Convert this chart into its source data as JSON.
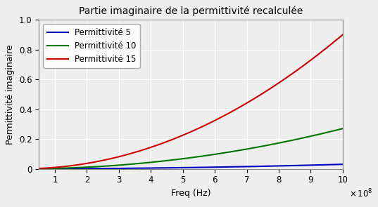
{
  "title": "Partie imaginaire de la permittivité recalculée",
  "xlabel": "Freq (Hz)",
  "ylabel": "Permittivité imaginaire",
  "xlim": [
    50000000.0,
    1000000000.0
  ],
  "ylim": [
    0,
    1.0
  ],
  "xticks": [
    100000000.0,
    200000000.0,
    300000000.0,
    400000000.0,
    500000000.0,
    600000000.0,
    700000000.0,
    800000000.0,
    900000000.0,
    1000000000.0
  ],
  "yticks": [
    0,
    0.2,
    0.4,
    0.6,
    0.8,
    1.0
  ],
  "series": [
    {
      "label": "Permittivité 5",
      "color": "#0000bb",
      "scale": 0.03,
      "exponent": 2.0
    },
    {
      "label": "Permittivité 10",
      "color": "#007700",
      "scale": 0.27,
      "exponent": 2.0
    },
    {
      "label": "Permittivité 15",
      "color": "#cc0000",
      "scale": 0.9,
      "exponent": 2.0
    }
  ],
  "background_color": "#eeeeee",
  "grid_color": "#ffffff",
  "legend_loc": "upper left",
  "title_fontsize": 10,
  "label_fontsize": 9,
  "tick_fontsize": 8.5
}
